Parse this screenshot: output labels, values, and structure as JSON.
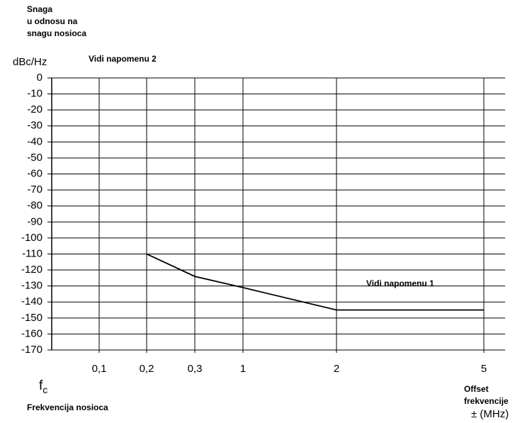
{
  "chart_data": {
    "type": "line",
    "y_label_lines": [
      "Snaga",
      "u odnosu na",
      "snagu nosioca"
    ],
    "y_unit": "dBc/Hz",
    "annotations": [
      "Vidi napomenu 2",
      "Vidi napomenu 1"
    ],
    "carrier_symbol": {
      "main": "f",
      "sub": "c"
    },
    "x_label": "Frekvencija nosioca",
    "x_unit_lines": [
      "Offset",
      "frekvencije",
      "± (MHz)"
    ],
    "categories": [
      "0,1",
      "0,2",
      "0,3",
      "1",
      "2",
      "5"
    ],
    "series": [
      {
        "color": "#000000",
        "values": [
          null,
          -110,
          -124,
          -131,
          -145,
          -145
        ]
      }
    ],
    "ylim": [
      -170,
      0
    ],
    "yticks": [
      0,
      -10,
      -20,
      -30,
      -40,
      -50,
      -60,
      -70,
      -80,
      -90,
      -100,
      -110,
      -120,
      -130,
      -140,
      -150,
      -160,
      -170
    ],
    "grid": true
  }
}
